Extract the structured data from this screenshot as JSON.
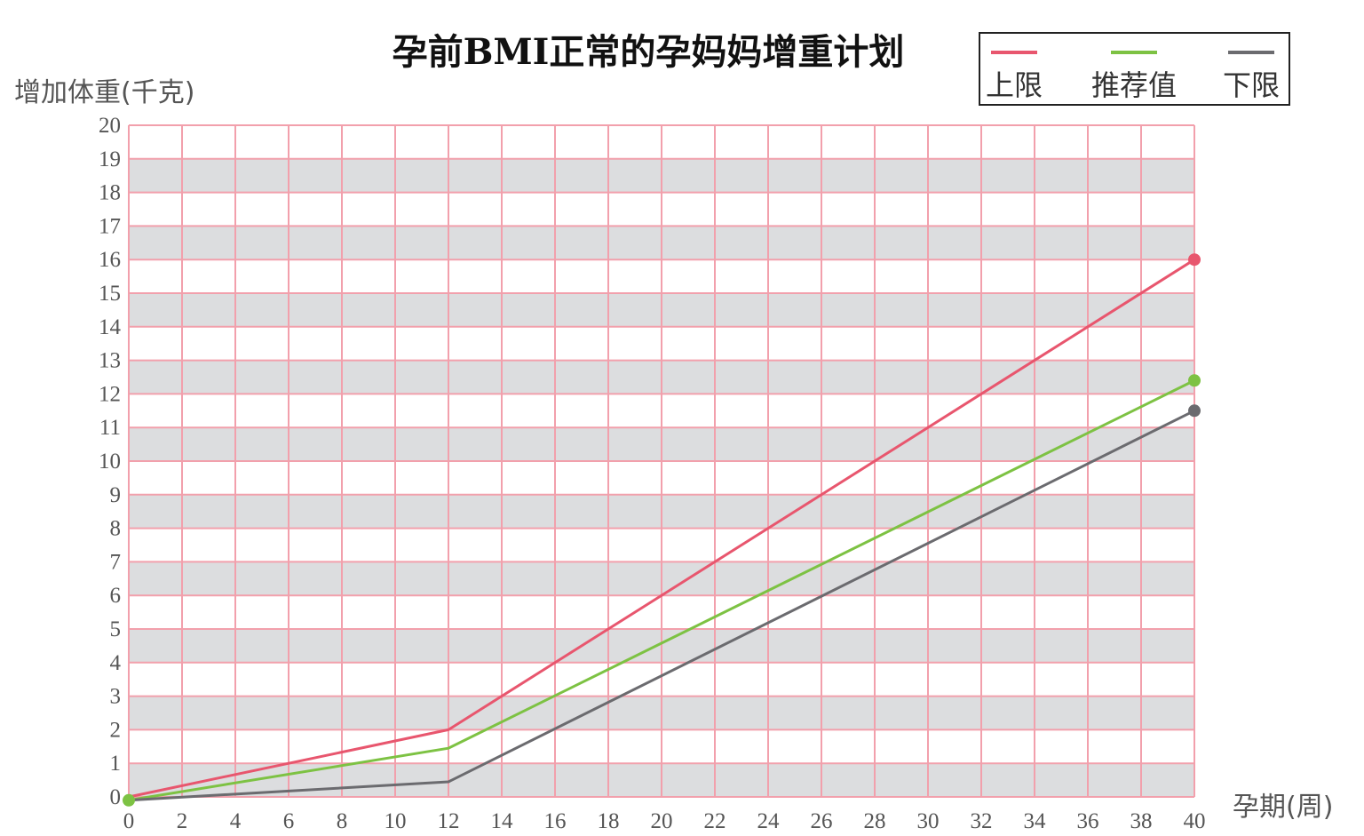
{
  "chart_data": {
    "type": "line",
    "title": "孕前BMI正常的孕妈妈增重计划",
    "xlabel": "孕期(周)",
    "ylabel": "增加体重(千克)",
    "xlim": [
      0,
      40
    ],
    "ylim": [
      0,
      20
    ],
    "x_ticks": [
      0,
      2,
      4,
      6,
      8,
      10,
      12,
      14,
      16,
      18,
      20,
      22,
      24,
      26,
      28,
      30,
      32,
      34,
      36,
      38,
      40
    ],
    "y_ticks": [
      0,
      1,
      2,
      3,
      4,
      5,
      6,
      7,
      8,
      9,
      10,
      11,
      12,
      13,
      14,
      15,
      16,
      17,
      18,
      19,
      20
    ],
    "grid": true,
    "legend_position": "top-right",
    "series": [
      {
        "name": "上限",
        "color": "#e8566e",
        "points": [
          [
            0,
            0
          ],
          [
            12,
            2
          ],
          [
            40,
            16
          ]
        ]
      },
      {
        "name": "推荐值",
        "color": "#7dc243",
        "points": [
          [
            0,
            -0.1
          ],
          [
            12,
            1.45
          ],
          [
            40,
            12.4
          ]
        ]
      },
      {
        "name": "下限",
        "color": "#6b6b6f",
        "points": [
          [
            0,
            -0.1
          ],
          [
            12,
            0.45
          ],
          [
            40,
            11.5
          ]
        ]
      }
    ],
    "colors": {
      "band": "#dcdddf",
      "grid": "#f2a0ac"
    }
  }
}
